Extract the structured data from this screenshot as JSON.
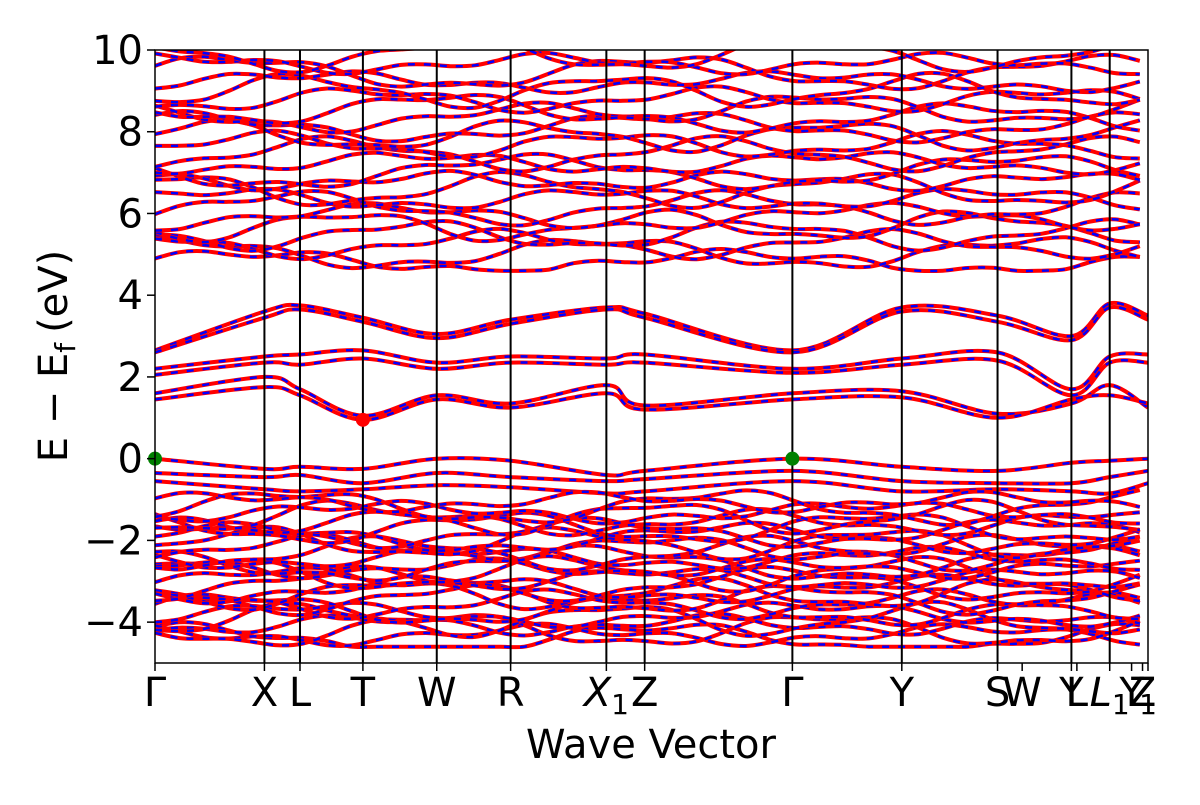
{
  "chart_data": {
    "type": "line",
    "title": "",
    "xlabel": "Wave Vector",
    "ylabel": "E − E_f (eV)",
    "ylabel_parts": {
      "main": "E − E",
      "sub": "f",
      "unit": "(eV)"
    },
    "ylim": [
      -5,
      10
    ],
    "yticks": [
      -4,
      -2,
      0,
      2,
      4,
      6,
      8,
      10
    ],
    "ytick_labels": [
      "−4",
      "−2",
      "0",
      "2",
      "4",
      "6",
      "8",
      "10"
    ],
    "grid": false,
    "legend": "none",
    "xlim": [
      0,
      36.3
    ],
    "kpoints": [
      {
        "label": "Γ",
        "x": 0.0
      },
      {
        "label": "X",
        "x": 4.0
      },
      {
        "label": "L",
        "x": 5.3
      },
      {
        "label": "T",
        "x": 7.6
      },
      {
        "label": "W",
        "x": 10.3
      },
      {
        "label": "R",
        "x": 13.0
      },
      {
        "label": "X",
        "sub": "1",
        "x": 16.5
      },
      {
        "label": "Z",
        "x": 17.9
      },
      {
        "label": "Γ",
        "x": 23.3
      },
      {
        "label": "Y",
        "x": 27.3
      },
      {
        "label": "S",
        "x": 30.8
      },
      {
        "label": "W",
        "x": 31.7
      },
      {
        "label": "Y",
        "x": 33.5
      },
      {
        "label": "L",
        "x": 33.7
      },
      {
        "label": "L",
        "sub": "1",
        "x": 34.9
      },
      {
        "label": "Y",
        "x": 35.7
      },
      {
        "label": "Z",
        "x": 36.1
      },
      {
        "label": "",
        "sub": "1",
        "x": 36.3
      }
    ],
    "divider_positions": [
      4.0,
      5.3,
      7.6,
      10.3,
      13.0,
      16.5,
      17.9,
      23.3,
      27.3,
      30.8,
      33.5,
      34.9
    ],
    "band_anchor_points": {
      "x": [
        0,
        4.0,
        5.3,
        7.6,
        10.3,
        13.0,
        16.5,
        17.9,
        23.3,
        27.3,
        30.8,
        33.5,
        34.9,
        36.3
      ],
      "conduction_gap_bands": [
        {
          "y": [
            2.65,
            3.6,
            3.75,
            3.45,
            3.05,
            3.4,
            3.7,
            3.55,
            2.65,
            3.7,
            3.5,
            3.0,
            3.8,
            3.5
          ]
        },
        {
          "y": [
            2.6,
            3.45,
            3.65,
            3.35,
            2.95,
            3.3,
            3.65,
            3.45,
            2.6,
            3.6,
            3.35,
            2.9,
            3.7,
            3.4
          ]
        },
        {
          "y": [
            2.2,
            2.5,
            2.55,
            2.65,
            2.35,
            2.5,
            2.45,
            2.55,
            2.2,
            2.45,
            2.6,
            1.7,
            2.5,
            2.55
          ]
        },
        {
          "y": [
            2.05,
            2.35,
            2.3,
            2.45,
            2.2,
            2.35,
            2.3,
            2.35,
            2.1,
            2.3,
            2.4,
            1.55,
            2.35,
            2.35
          ]
        },
        {
          "y": [
            1.6,
            2.0,
            1.7,
            1.05,
            1.55,
            1.35,
            1.8,
            1.3,
            1.6,
            1.65,
            1.1,
            1.35,
            1.8,
            1.25
          ]
        },
        {
          "y": [
            1.45,
            1.75,
            1.55,
            0.95,
            1.45,
            1.25,
            1.6,
            1.2,
            1.45,
            1.5,
            1.0,
            1.45,
            1.55,
            1.35
          ]
        }
      ],
      "valence_top_bands": [
        {
          "y": [
            0.0,
            -0.25,
            -0.2,
            -0.25,
            0.0,
            -0.05,
            -0.4,
            -0.3,
            0.0,
            -0.2,
            -0.3,
            -0.1,
            -0.05,
            0.0
          ]
        },
        {
          "y": [
            -0.35,
            -0.45,
            -0.4,
            -0.6,
            -0.35,
            -0.45,
            -0.55,
            -0.5,
            -0.3,
            -0.55,
            -0.6,
            -0.6,
            -0.45,
            -0.3
          ]
        },
        {
          "y": [
            -0.55,
            -0.75,
            -0.8,
            -0.75,
            -0.65,
            -0.7,
            -0.85,
            -0.8,
            -0.55,
            -0.8,
            -0.75,
            -0.8,
            -0.85,
            -0.6
          ]
        }
      ]
    },
    "dense_band_regions": {
      "upper_conduction": {
        "ymin": 4.7,
        "ymax": 10.0,
        "count": 24
      },
      "lower_valence": {
        "ymin": -4.5,
        "ymax": -1.0,
        "count": 28
      }
    },
    "series": [
      {
        "color": "#ff0000",
        "style": "solid"
      },
      {
        "color": "#0000ff",
        "style": "dashed"
      }
    ],
    "markers": [
      {
        "x": 0.0,
        "y": 0.0,
        "color": "#008000"
      },
      {
        "x": 23.3,
        "y": 0.0,
        "color": "#008000"
      },
      {
        "x": 7.6,
        "y": 0.95,
        "color": "#ff0000"
      }
    ]
  }
}
